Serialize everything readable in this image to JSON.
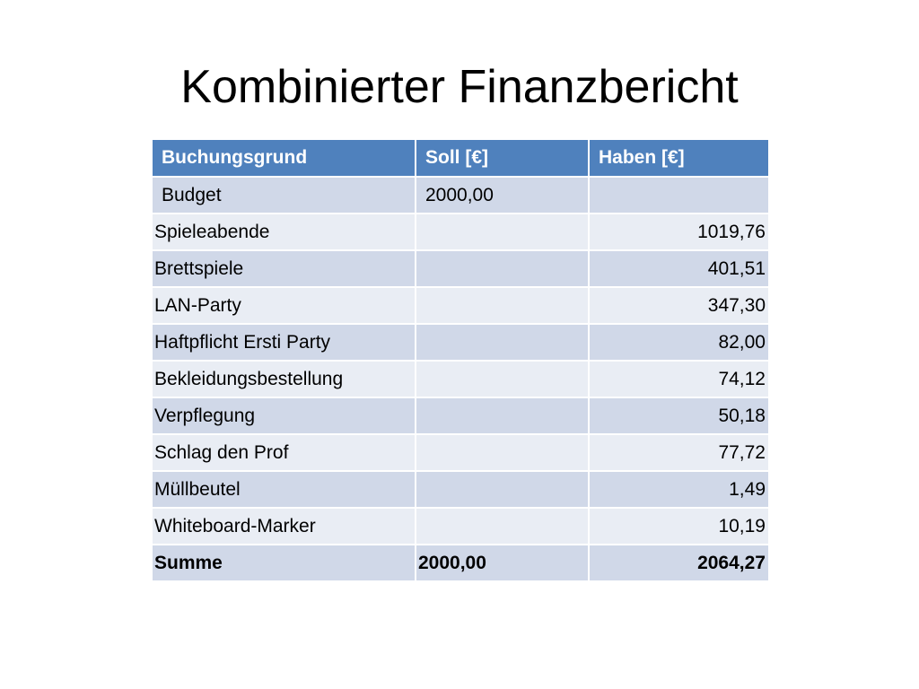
{
  "title": "Kombinierter Finanzbericht",
  "table": {
    "headers": [
      "Buchungsgrund",
      "Soll [€]",
      "Haben [€]"
    ],
    "rows": [
      {
        "label": "Budget",
        "soll": "2000,00",
        "haben": ""
      },
      {
        "label": "Spieleabende",
        "soll": "",
        "haben": "1019,76"
      },
      {
        "label": "Brettspiele",
        "soll": "",
        "haben": "401,51"
      },
      {
        "label": "LAN-Party",
        "soll": "",
        "haben": "347,30"
      },
      {
        "label": "Haftpflicht Ersti Party",
        "soll": "",
        "haben": "82,00"
      },
      {
        "label": "Bekleidungsbestellung",
        "soll": "",
        "haben": "74,12"
      },
      {
        "label": "Verpflegung",
        "soll": "",
        "haben": "50,18"
      },
      {
        "label": "Schlag den Prof",
        "soll": "",
        "haben": "77,72"
      },
      {
        "label": "Müllbeutel",
        "soll": "",
        "haben": "1,49"
      },
      {
        "label": "Whiteboard-Marker",
        "soll": "",
        "haben": "10,19"
      }
    ],
    "sum": {
      "label": "Summe",
      "soll": "2000,00",
      "haben": "2064,27"
    }
  },
  "colors": {
    "header": "#4f81bd",
    "row_odd": "#d0d8e8",
    "row_even": "#e9edf4"
  }
}
